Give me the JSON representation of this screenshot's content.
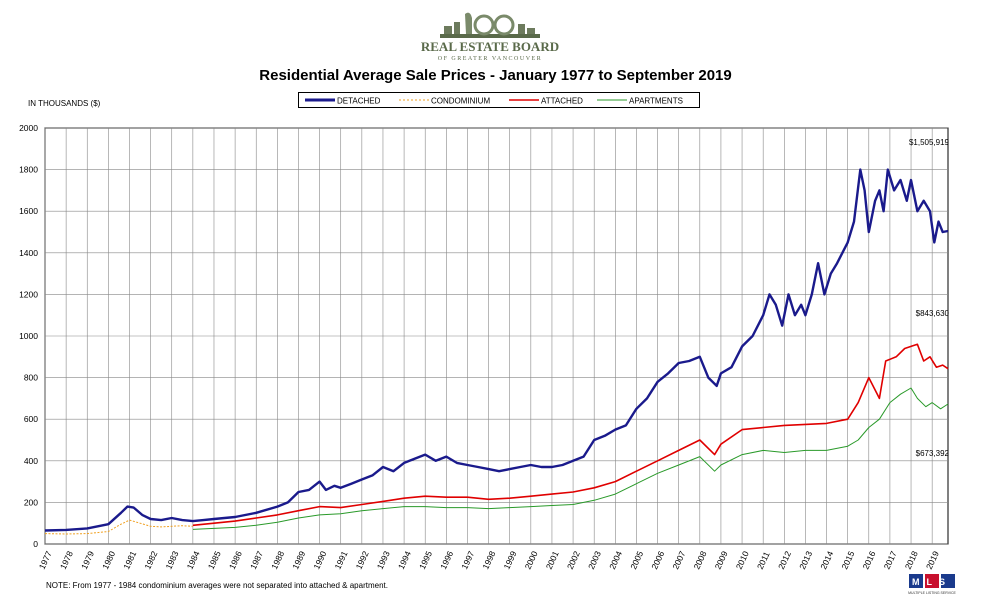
{
  "header": {
    "logo_text": "REAL ESTATE BOARD",
    "logo_subtext": "OF GREATER VANCOUVER",
    "logo_number": "100"
  },
  "note": "NOTE:  From 1977 - 1984 condominium averages were not separated into attached & apartment.",
  "mls_logo": "MLS",
  "colors": {
    "detached": "#1a1a8c",
    "condominium": "#f0a020",
    "attached": "#e00000",
    "apartments": "#2a9a2a"
  },
  "chart_data": {
    "type": "line",
    "title": "Residential Average Sale Prices  -  January 1977 to September 2019",
    "ylabel": "IN THOUSANDS ($)",
    "xlabel": "",
    "ylim": [
      0,
      2000
    ],
    "yticks": [
      0,
      200,
      400,
      600,
      800,
      1000,
      1200,
      1400,
      1600,
      1800,
      2000
    ],
    "xlim": [
      1977,
      2019.75
    ],
    "xticks": [
      "1977",
      "1978",
      "1979",
      "1980",
      "1981",
      "1982",
      "1983",
      "1984",
      "1985",
      "1986",
      "1987",
      "1988",
      "1989",
      "1990",
      "1991",
      "1992",
      "1993",
      "1994",
      "1995",
      "1996",
      "1997",
      "1998",
      "1999",
      "2000",
      "2001",
      "2002",
      "2003",
      "2004",
      "2005",
      "2006",
      "2007",
      "2008",
      "2009",
      "2010",
      "2011",
      "2012",
      "2013",
      "2014",
      "2015",
      "2016",
      "2017",
      "2018",
      "2019"
    ],
    "grid": true,
    "legend_placement": "top-center",
    "annotations": [
      "$1,505,919",
      "$843,630",
      "$673,392"
    ],
    "series": [
      {
        "name": "DETACHED",
        "x": [
          1977,
          1978,
          1979,
          1980,
          1980.6,
          1980.9,
          1981.2,
          1981.6,
          1982,
          1982.5,
          1983,
          1983.5,
          1984,
          1984.5,
          1985,
          1986,
          1987,
          1988,
          1988.5,
          1989,
          1989.5,
          1990,
          1990.3,
          1990.7,
          1991,
          1991.5,
          1992,
          1992.5,
          1993,
          1993.5,
          1994,
          1994.5,
          1995,
          1995.5,
          1996,
          1996.5,
          1997,
          1997.5,
          1998,
          1998.5,
          1999,
          1999.5,
          2000,
          2000.5,
          2001,
          2001.5,
          2002,
          2002.5,
          2003,
          2003.5,
          2004,
          2004.5,
          2005,
          2005.5,
          2006,
          2006.5,
          2007,
          2007.5,
          2008,
          2008.4,
          2008.8,
          2009,
          2009.5,
          2010,
          2010.5,
          2011,
          2011.3,
          2011.6,
          2011.9,
          2012.2,
          2012.5,
          2012.8,
          2013,
          2013.3,
          2013.6,
          2013.9,
          2014.2,
          2014.5,
          2015,
          2015.3,
          2015.6,
          2015.8,
          2016,
          2016.3,
          2016.5,
          2016.7,
          2016.9,
          2017.2,
          2017.5,
          2017.8,
          2018,
          2018.3,
          2018.6,
          2018.9,
          2019.1,
          2019.3,
          2019.5,
          2019.75
        ],
        "values": [
          65,
          68,
          75,
          95,
          150,
          180,
          175,
          140,
          120,
          115,
          125,
          115,
          110,
          115,
          120,
          130,
          150,
          180,
          200,
          250,
          260,
          300,
          260,
          280,
          270,
          290,
          310,
          330,
          370,
          350,
          390,
          410,
          430,
          400,
          420,
          390,
          380,
          370,
          360,
          350,
          360,
          370,
          380,
          370,
          370,
          380,
          400,
          420,
          500,
          520,
          550,
          570,
          650,
          700,
          780,
          820,
          870,
          880,
          900,
          800,
          760,
          820,
          850,
          950,
          1000,
          1100,
          1200,
          1150,
          1050,
          1200,
          1100,
          1150,
          1100,
          1200,
          1350,
          1200,
          1300,
          1350,
          1450,
          1550,
          1800,
          1700,
          1500,
          1650,
          1700,
          1600,
          1800,
          1700,
          1750,
          1650,
          1750,
          1600,
          1650,
          1600,
          1450,
          1550,
          1500,
          1505
        ]
      },
      {
        "name": "CONDOMINIUM",
        "x": [
          1977,
          1978,
          1979,
          1980,
          1980.6,
          1981,
          1981.5,
          1982,
          1982.5,
          1983,
          1983.5,
          1984
        ],
        "values": [
          50,
          48,
          50,
          60,
          95,
          115,
          100,
          85,
          82,
          85,
          88,
          85
        ]
      },
      {
        "name": "ATTACHED",
        "x": [
          1984,
          1985,
          1986,
          1987,
          1988,
          1989,
          1990,
          1991,
          1992,
          1993,
          1994,
          1995,
          1996,
          1997,
          1998,
          1999,
          2000,
          2001,
          2002,
          2003,
          2004,
          2005,
          2006,
          2007,
          2008,
          2008.7,
          2009,
          2010,
          2011,
          2012,
          2013,
          2014,
          2015,
          2015.5,
          2016,
          2016.5,
          2016.8,
          2017.3,
          2017.7,
          2018,
          2018.3,
          2018.6,
          2018.9,
          2019.2,
          2019.5,
          2019.75
        ],
        "values": [
          90,
          100,
          110,
          125,
          140,
          160,
          180,
          175,
          190,
          205,
          220,
          230,
          225,
          225,
          215,
          220,
          230,
          240,
          250,
          270,
          300,
          350,
          400,
          450,
          500,
          430,
          480,
          550,
          560,
          570,
          575,
          580,
          600,
          680,
          800,
          700,
          880,
          900,
          940,
          950,
          960,
          880,
          900,
          850,
          860,
          843
        ]
      },
      {
        "name": "APARTMENTS",
        "x": [
          1984,
          1985,
          1986,
          1987,
          1988,
          1989,
          1990,
          1991,
          1992,
          1993,
          1994,
          1995,
          1996,
          1997,
          1998,
          1999,
          2000,
          2001,
          2002,
          2003,
          2004,
          2005,
          2006,
          2007,
          2008,
          2008.7,
          2009,
          2010,
          2011,
          2012,
          2013,
          2014,
          2015,
          2015.5,
          2016,
          2016.5,
          2017,
          2017.5,
          2018,
          2018.3,
          2018.7,
          2019,
          2019.4,
          2019.75
        ],
        "values": [
          70,
          75,
          80,
          90,
          105,
          125,
          140,
          145,
          160,
          170,
          180,
          180,
          175,
          175,
          170,
          175,
          180,
          185,
          190,
          210,
          240,
          290,
          340,
          380,
          420,
          350,
          380,
          430,
          450,
          440,
          450,
          450,
          470,
          500,
          560,
          600,
          680,
          720,
          750,
          700,
          660,
          680,
          650,
          673
        ]
      }
    ]
  }
}
